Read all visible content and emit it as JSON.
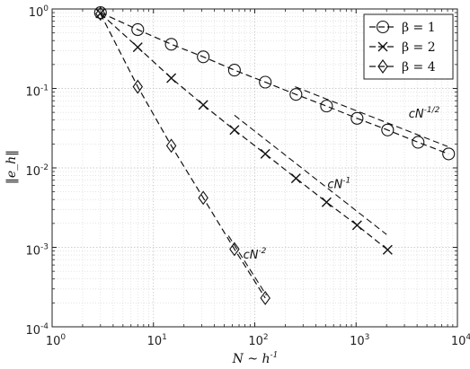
{
  "chart_data": {
    "type": "line",
    "x_scale": "log",
    "y_scale": "log",
    "xlim": [
      1,
      10000
    ],
    "ylim": [
      0.0001,
      1
    ],
    "grid": true,
    "legend_position": "top-right",
    "xlabel": {
      "base": "N ~ h",
      "sup": "-1"
    },
    "ylabel": "‖e_h‖",
    "x_ticks": [
      {
        "base": "10",
        "exp": "0",
        "value": 1
      },
      {
        "base": "10",
        "exp": "1",
        "value": 10
      },
      {
        "base": "10",
        "exp": "2",
        "value": 100
      },
      {
        "base": "10",
        "exp": "3",
        "value": 1000
      },
      {
        "base": "10",
        "exp": "4",
        "value": 10000
      }
    ],
    "y_ticks": [
      {
        "base": "10",
        "exp": "0",
        "value": 1
      },
      {
        "base": "10",
        "exp": "-1",
        "value": 0.1
      },
      {
        "base": "10",
        "exp": "-2",
        "value": 0.01
      },
      {
        "base": "10",
        "exp": "-3",
        "value": 0.001
      },
      {
        "base": "10",
        "exp": "-4",
        "value": 0.0001
      }
    ],
    "series": [
      {
        "name": "β = 1",
        "marker": "circle",
        "x": [
          3,
          7,
          15,
          31,
          63,
          127,
          255,
          511,
          1023,
          2047,
          4095,
          8191
        ],
        "y": [
          0.9,
          0.55,
          0.36,
          0.25,
          0.17,
          0.12,
          0.084,
          0.06,
          0.042,
          0.03,
          0.021,
          0.015
        ]
      },
      {
        "name": "β = 2",
        "marker": "x",
        "x": [
          3,
          7,
          15,
          31,
          63,
          127,
          255,
          511,
          1023,
          2047
        ],
        "y": [
          0.88,
          0.33,
          0.135,
          0.062,
          0.03,
          0.015,
          0.0074,
          0.0037,
          0.0019,
          0.00093
        ]
      },
      {
        "name": "β = 4",
        "marker": "diamond",
        "x": [
          3,
          7,
          15,
          31,
          63,
          127
        ],
        "y": [
          0.87,
          0.105,
          0.019,
          0.0042,
          0.00095,
          0.00023
        ]
      }
    ],
    "reference_lines": [
      {
        "label_base": "cN",
        "label_exp": "-1/2",
        "x": [
          250,
          8000
        ],
        "y": [
          0.105,
          0.0186
        ],
        "label_at": [
          4700,
          0.043
        ]
      },
      {
        "label_base": "cN",
        "label_exp": "-1",
        "x": [
          63,
          2000
        ],
        "y": [
          0.046,
          0.00145
        ],
        "label_at": [
          680,
          0.0056
        ]
      },
      {
        "label_base": "cN",
        "label_exp": "-2",
        "x": [
          55,
          130
        ],
        "y": [
          0.0014,
          0.00025
        ],
        "label_at": [
          100,
          0.00072
        ]
      }
    ]
  }
}
